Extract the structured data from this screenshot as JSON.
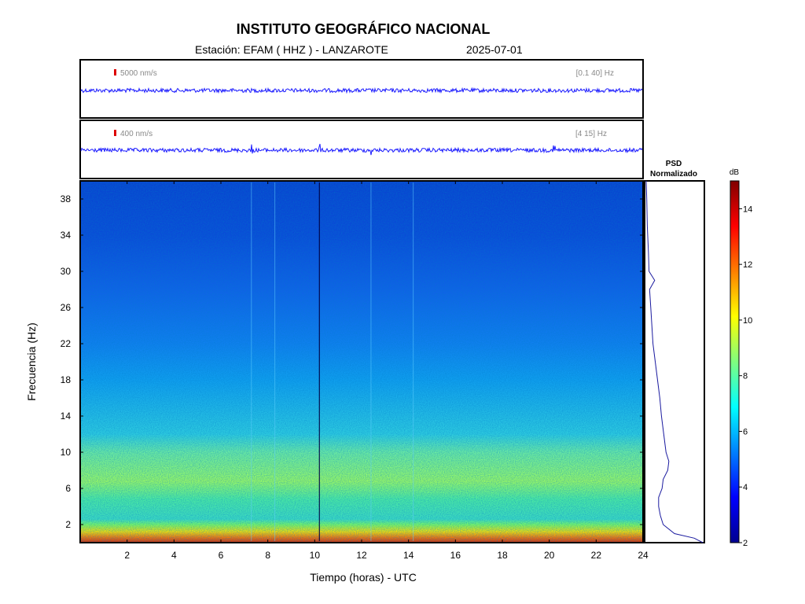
{
  "header": {
    "title": "INSTITUTO GEOGRÁFICO NACIONAL",
    "station": "Estación:  EFAM ( HHZ ) - LANZAROTE",
    "date": "2025-07-01"
  },
  "colors": {
    "trace": "#1a1aff",
    "scale_marker": "#dd0000",
    "psd_line": "#1a1a9f",
    "colormap": [
      "#00008f",
      "#0000ff",
      "#0080ff",
      "#00ffff",
      "#80ff80",
      "#ffff00",
      "#ff8000",
      "#ff0000",
      "#800000"
    ]
  },
  "chart_data": [
    {
      "type": "line",
      "panel": "seismogram-broadband",
      "scale_label": "5000 nm/s",
      "band_label": "[0.1 40] Hz",
      "description_trace": "continuous low-amplitude velocity trace"
    },
    {
      "type": "line",
      "panel": "seismogram-filtered",
      "scale_label": "400 nm/s",
      "band_label": "[4 15] Hz",
      "spikes_hours": [
        7.3,
        10.2,
        12.4,
        20.2
      ]
    },
    {
      "type": "heatmap",
      "panel": "spectrogram",
      "xlabel": "Tiempo (horas) - UTC",
      "ylabel": "Frecuencia  (Hz)",
      "xlim": [
        0,
        24
      ],
      "ylim": [
        0,
        40
      ],
      "xticks": [
        2,
        4,
        6,
        8,
        10,
        12,
        14,
        16,
        18,
        20,
        22,
        24
      ],
      "yticks": [
        2,
        6,
        10,
        14,
        18,
        22,
        26,
        30,
        34,
        38
      ],
      "energy_bands_hz": [
        {
          "range": [
            0,
            1
          ],
          "level_db": 13.5
        },
        {
          "range": [
            1,
            2.5
          ],
          "level_db": 10
        },
        {
          "range": [
            5,
            10
          ],
          "level_db": 8
        },
        {
          "range": [
            10,
            20
          ],
          "level_db": 6
        },
        {
          "range": [
            20,
            40
          ],
          "level_db": 4
        }
      ],
      "vertical_events_hours": [
        7.3,
        8.3,
        10.2,
        12.4,
        14.2
      ]
    },
    {
      "type": "line",
      "panel": "psd",
      "title": "PSD\nNormalizado",
      "title_line1": "PSD",
      "title_line2": "Normalizado",
      "freq_hz": [
        40,
        38,
        35,
        32,
        30,
        29,
        28,
        26,
        24,
        22,
        20,
        18,
        16,
        14,
        12,
        10,
        9,
        8,
        7,
        6,
        5,
        4,
        3,
        2,
        1,
        0.5,
        0
      ],
      "norm_psd": [
        0.0,
        0.01,
        0.02,
        0.04,
        0.05,
        0.15,
        0.06,
        0.08,
        0.1,
        0.12,
        0.16,
        0.2,
        0.24,
        0.27,
        0.31,
        0.35,
        0.4,
        0.38,
        0.3,
        0.28,
        0.22,
        0.22,
        0.25,
        0.3,
        0.5,
        0.85,
        1.0
      ]
    },
    {
      "type": "heatmap",
      "panel": "colorbar",
      "label": "dB",
      "range": [
        2,
        15
      ],
      "ticks": [
        2,
        4,
        6,
        8,
        10,
        12,
        14
      ]
    }
  ]
}
